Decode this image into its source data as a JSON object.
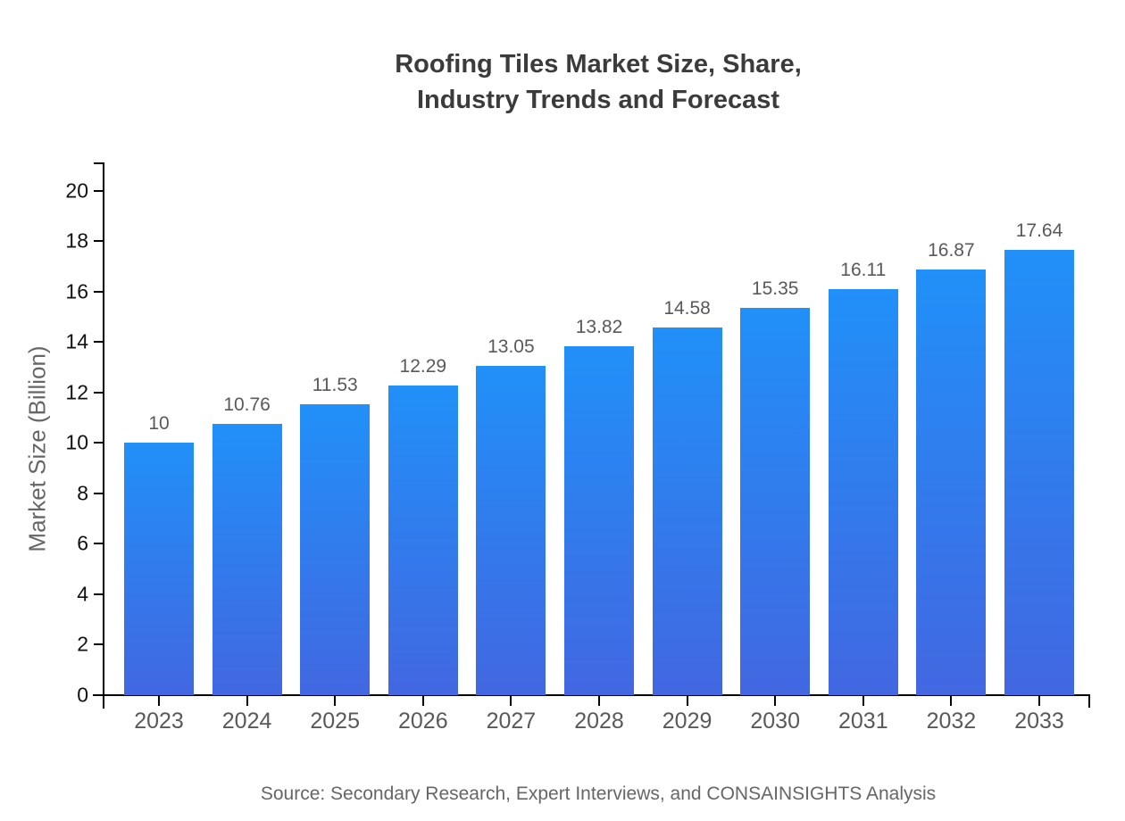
{
  "title": {
    "line1": "Roofing Tiles Market Size, Share,",
    "line2": "Industry Trends and Forecast"
  },
  "source": "Source: Secondary Research, Expert Interviews, and CONSAINSIGHTS Analysis",
  "chart_data": {
    "type": "bar",
    "title": "Roofing Tiles Market Size, Share, Industry Trends and Forecast",
    "categories": [
      "2023",
      "2024",
      "2025",
      "2026",
      "2027",
      "2028",
      "2029",
      "2030",
      "2031",
      "2032",
      "2033"
    ],
    "values": [
      10,
      10.76,
      11.53,
      12.29,
      13.05,
      13.82,
      14.58,
      15.35,
      16.11,
      16.87,
      17.64
    ],
    "value_labels": [
      "10",
      "10.76",
      "11.53",
      "12.29",
      "13.05",
      "13.82",
      "14.58",
      "15.35",
      "16.11",
      "16.87",
      "17.64"
    ],
    "xlabel": "",
    "ylabel": "Market Size (Billion)",
    "ylim": [
      0,
      20
    ],
    "ytick_step": 2,
    "grid": false,
    "legend": "none",
    "colors": {
      "bar_gradient_top": "#2190f8",
      "bar_gradient_bottom": "#4267e1",
      "axis": "#000000",
      "y_tick_text": "#111111",
      "x_tick_text": "#595959",
      "value_label_text": "#595959",
      "title_text": "#3b3b3b",
      "source_text": "#666666"
    }
  }
}
